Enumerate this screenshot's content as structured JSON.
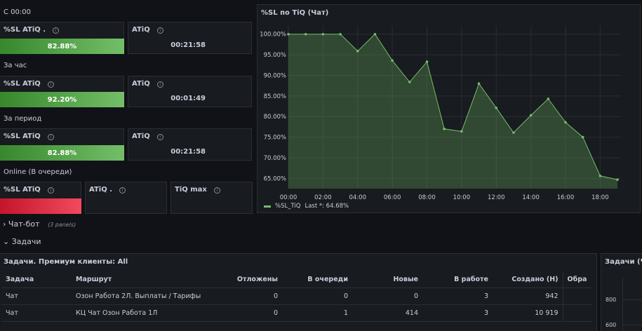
{
  "sections": {
    "since_midnight": "С 00:00",
    "per_hour": "За час",
    "per_period": "За период",
    "online": "Online (В очереди)"
  },
  "stats": {
    "s1": {
      "sl_title": "%SL ATiQ .",
      "sl_value": "82.88%",
      "sl_fill": 1.0,
      "atiq_title": "ATiQ",
      "atiq_value": "00:21:58"
    },
    "s2": {
      "sl_title": "%SL ATiQ",
      "sl_value": "92.20%",
      "sl_fill": 1.0,
      "atiq_title": "ATiQ",
      "atiq_value": "00:01:49"
    },
    "s3": {
      "sl_title": "%SL ATiQ",
      "sl_value": "82.88%",
      "sl_fill": 1.0,
      "atiq_title": "ATiQ",
      "atiq_value": "00:21:58"
    },
    "s4": {
      "sl_title": "%SL ATiQ",
      "atiq_title": "ATiQ .",
      "tiq_title": "TiQ max"
    }
  },
  "info_glyph": "i",
  "chart": {
    "title": "%SL по TiQ (Чат)",
    "legend_label": "%SL_TiQ",
    "legend_last": "Last *: 64.68%",
    "color": "#73bf69"
  },
  "chart_data": {
    "type": "area",
    "x_ticks": [
      "00:00",
      "02:00",
      "04:00",
      "06:00",
      "08:00",
      "10:00",
      "12:00",
      "14:00",
      "16:00",
      "18:00"
    ],
    "y_ticks": [
      "100.00%",
      "95.00%",
      "90.00%",
      "85.00%",
      "80.00%",
      "75.00%",
      "70.00%",
      "65.00%"
    ],
    "ylim": [
      62.5,
      102
    ],
    "xlim": [
      0,
      19.2
    ],
    "series": [
      {
        "name": "%SL_TiQ",
        "x": [
          0,
          1,
          2,
          3,
          4,
          5,
          6,
          7,
          8,
          9,
          10,
          11,
          12,
          13,
          14,
          15,
          16,
          17,
          18,
          19
        ],
        "values": [
          100,
          100,
          100,
          100,
          95.9,
          100,
          93.6,
          88.4,
          93.3,
          77,
          76.4,
          88,
          82.1,
          76.1,
          80.3,
          84.3,
          78.6,
          75,
          65.6,
          64.68
        ]
      }
    ],
    "grid": true,
    "legend": "bottom-left"
  },
  "rows": {
    "chatbot": {
      "label": "Чат-бот",
      "sub": "(3 panels)",
      "chevron": "›"
    },
    "tasks": {
      "label": "Задачи",
      "chevron": "⌄"
    }
  },
  "tasks_table": {
    "title": "Задачи. Премиум клиенты: All",
    "headers": [
      "Задача",
      "Маршрут",
      "Отложены",
      "В очереди",
      "Новые",
      "В работе",
      "Создано (Н)",
      "Обра"
    ],
    "rows": [
      [
        "Чат",
        "Озон Работа 2Л. Выплаты / Тарифы",
        "0",
        "0",
        "0",
        "3",
        "942",
        ""
      ],
      [
        "Чат",
        "КЦ Чат Озон Работа 1Л",
        "0",
        "1",
        "414",
        "3",
        "10 919",
        ""
      ]
    ]
  },
  "side_panel": {
    "title": "Задачи (Чат",
    "y_ticks": [
      "800",
      "600"
    ]
  }
}
